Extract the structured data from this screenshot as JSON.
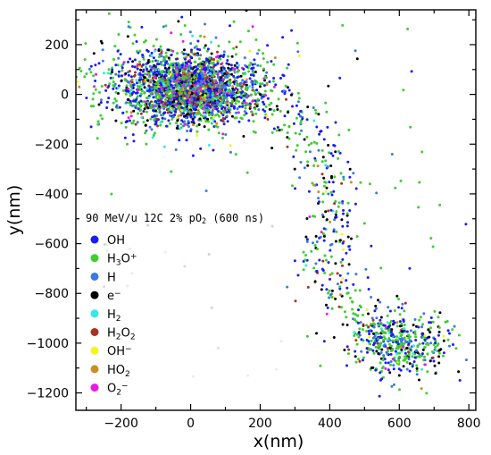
{
  "chart_data": {
    "type": "scatter",
    "title": "",
    "xlabel": "x(nm)",
    "ylabel": "y(nm)",
    "xlim": [
      -330,
      820
    ],
    "ylim": [
      -1270,
      340
    ],
    "xticks": [
      -200,
      0,
      200,
      400,
      600,
      800
    ],
    "xtick_labels": [
      "−200",
      "0",
      "200",
      "400",
      "600",
      "800"
    ],
    "yticks": [
      200,
      0,
      -200,
      -400,
      -600,
      -800,
      -1000,
      -1200
    ],
    "ytick_labels": [
      "200",
      "0",
      "−200",
      "−400",
      "−600",
      "−800",
      "−1000",
      "−1200"
    ],
    "legend": {
      "placement": "middle-left",
      "title_parts": [
        {
          "t": "90 MeV/u 12C 2% pO"
        },
        {
          "t": "2",
          "sub": true
        },
        {
          "t": " (600 ns)"
        }
      ],
      "entries": [
        {
          "name": "OH",
          "color": "#1a1aff",
          "parts": [
            {
              "t": "OH"
            }
          ]
        },
        {
          "name": "H3O+",
          "color": "#3ccf2e",
          "parts": [
            {
              "t": "H"
            },
            {
              "t": "3",
              "sub": true
            },
            {
              "t": "O"
            },
            {
              "t": "+",
              "sup": true
            }
          ]
        },
        {
          "name": "H",
          "color": "#3a78e6",
          "parts": [
            {
              "t": "H"
            }
          ]
        },
        {
          "name": "e-",
          "color": "#000000",
          "parts": [
            {
              "t": "e"
            },
            {
              "t": "−",
              "sup": true
            }
          ]
        },
        {
          "name": "H2",
          "color": "#35e8e8",
          "parts": [
            {
              "t": "H"
            },
            {
              "t": "2",
              "sub": true
            }
          ]
        },
        {
          "name": "H2O2",
          "color": "#a8321c",
          "parts": [
            {
              "t": "H"
            },
            {
              "t": "2",
              "sub": true
            },
            {
              "t": "O"
            },
            {
              "t": "2",
              "sub": true
            }
          ]
        },
        {
          "name": "OH-",
          "color": "#f5f51a",
          "parts": [
            {
              "t": "OH"
            },
            {
              "t": "−",
              "sup": true
            }
          ]
        },
        {
          "name": "HO2",
          "color": "#c8901e",
          "parts": [
            {
              "t": "HO"
            },
            {
              "t": "2",
              "sub": true
            }
          ]
        },
        {
          "name": "O2-",
          "color": "#e81ae8",
          "parts": [
            {
              "t": "O"
            },
            {
              "t": "2",
              "sub": true
            },
            {
              "t": "−",
              "sup": true
            }
          ]
        }
      ]
    },
    "clusters": [
      {
        "center": [
          0,
          20
        ],
        "spread": [
          95,
          70
        ],
        "count": 1900,
        "composition": [
          0.26,
          0.3,
          0.12,
          0.1,
          0.04,
          0.06,
          0.03,
          0.03,
          0.06
        ]
      },
      {
        "center": [
          0,
          10
        ],
        "spread": [
          35,
          35
        ],
        "count": 520,
        "composition": [
          0.22,
          0.12,
          0.08,
          0.06,
          0.02,
          0.18,
          0.06,
          0.1,
          0.16
        ]
      },
      {
        "center": [
          -60,
          60
        ],
        "spread": [
          150,
          110
        ],
        "count": 420,
        "composition": [
          0.24,
          0.46,
          0.1,
          0.1,
          0.03,
          0.02,
          0.02,
          0.01,
          0.02
        ]
      },
      {
        "center": [
          600,
          -1000
        ],
        "spread": [
          75,
          65
        ],
        "count": 420,
        "composition": [
          0.26,
          0.34,
          0.12,
          0.14,
          0.03,
          0.04,
          0.03,
          0.02,
          0.02
        ]
      }
    ],
    "track": {
      "path": [
        [
          130,
          30
        ],
        [
          260,
          -40
        ],
        [
          340,
          -160
        ],
        [
          390,
          -290
        ],
        [
          420,
          -470
        ],
        [
          400,
          -640
        ],
        [
          420,
          -820
        ],
        [
          520,
          -920
        ],
        [
          600,
          -1000
        ]
      ],
      "spread": 45,
      "count": 380,
      "composition": [
        0.26,
        0.34,
        0.12,
        0.15,
        0.03,
        0.04,
        0.03,
        0.02,
        0.01
      ]
    },
    "scatter_background": {
      "xlim": [
        -260,
        800
      ],
      "ylim": [
        -1150,
        300
      ],
      "count": 90,
      "composition": [
        0.2,
        0.6,
        0.1,
        0.1,
        0,
        0,
        0,
        0,
        0
      ]
    }
  }
}
